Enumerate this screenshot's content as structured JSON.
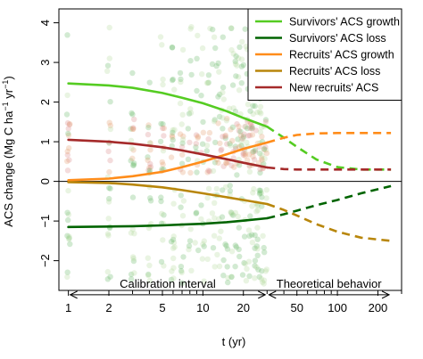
{
  "chart_data": {
    "type": "line",
    "xlabel": "t (yr)",
    "ylabel_main": "ACS change (Mg C ha",
    "ylabel_sup1": "−1",
    "ylabel_mid": " yr",
    "ylabel_sup2": "−1",
    "ylabel_end": ")",
    "x_scale": "log",
    "xlim": [
      0.85,
      300
    ],
    "ylim": [
      -2.75,
      4.35
    ],
    "x_ticks": [
      1,
      2,
      5,
      10,
      20,
      50,
      100,
      200
    ],
    "y_ticks": [
      -2,
      -1,
      0,
      1,
      2,
      3,
      4
    ],
    "zero_line": true,
    "calibration_max_t": 30,
    "annotations": [
      {
        "text": "Calibration interval",
        "x_from": 1,
        "x_to": 30,
        "y": -2.5
      },
      {
        "text": "Theoretical behavior",
        "x_from": 30,
        "x_to": 250,
        "y": -2.5
      }
    ],
    "legend_position": "top-right",
    "series": [
      {
        "name": "Survivors' ACS growth",
        "color": "#55cc22",
        "points": [
          [
            1,
            2.47
          ],
          [
            2,
            2.42
          ],
          [
            3,
            2.36
          ],
          [
            5,
            2.23
          ],
          [
            7,
            2.11
          ],
          [
            10,
            1.97
          ],
          [
            15,
            1.77
          ],
          [
            20,
            1.6
          ],
          [
            30,
            1.38
          ],
          [
            40,
            1.1
          ],
          [
            50,
            0.87
          ],
          [
            70,
            0.55
          ],
          [
            100,
            0.36
          ],
          [
            150,
            0.3
          ],
          [
            250,
            0.3
          ]
        ]
      },
      {
        "name": "Survivors' ACS loss",
        "color": "#006400",
        "points": [
          [
            1,
            -1.15
          ],
          [
            2,
            -1.14
          ],
          [
            3,
            -1.13
          ],
          [
            5,
            -1.11
          ],
          [
            7,
            -1.09
          ],
          [
            10,
            -1.07
          ],
          [
            15,
            -1.03
          ],
          [
            20,
            -0.99
          ],
          [
            30,
            -0.93
          ],
          [
            40,
            -0.83
          ],
          [
            50,
            -0.74
          ],
          [
            70,
            -0.6
          ],
          [
            100,
            -0.47
          ],
          [
            150,
            -0.3
          ],
          [
            250,
            -0.12
          ]
        ]
      },
      {
        "name": "Recruits' ACS growth",
        "color": "#ff8c1a",
        "points": [
          [
            1,
            0.03
          ],
          [
            2,
            0.07
          ],
          [
            3,
            0.13
          ],
          [
            5,
            0.24
          ],
          [
            7,
            0.36
          ],
          [
            10,
            0.5
          ],
          [
            15,
            0.68
          ],
          [
            20,
            0.82
          ],
          [
            30,
            0.98
          ],
          [
            40,
            1.1
          ],
          [
            50,
            1.17
          ],
          [
            70,
            1.21
          ],
          [
            100,
            1.22
          ],
          [
            250,
            1.22
          ]
        ]
      },
      {
        "name": "Recruits' ACS loss",
        "color": "#b8860b",
        "points": [
          [
            1,
            -0.02
          ],
          [
            2,
            -0.04
          ],
          [
            3,
            -0.08
          ],
          [
            5,
            -0.15
          ],
          [
            7,
            -0.22
          ],
          [
            10,
            -0.3
          ],
          [
            15,
            -0.4
          ],
          [
            20,
            -0.47
          ],
          [
            30,
            -0.57
          ],
          [
            40,
            -0.72
          ],
          [
            50,
            -0.86
          ],
          [
            70,
            -1.08
          ],
          [
            100,
            -1.27
          ],
          [
            150,
            -1.42
          ],
          [
            250,
            -1.5
          ]
        ]
      },
      {
        "name": "New recruits' ACS",
        "color": "#a52a2a",
        "points": [
          [
            1,
            1.05
          ],
          [
            2,
            1.0
          ],
          [
            3,
            0.95
          ],
          [
            5,
            0.86
          ],
          [
            7,
            0.78
          ],
          [
            10,
            0.68
          ],
          [
            15,
            0.56
          ],
          [
            20,
            0.47
          ],
          [
            30,
            0.35
          ],
          [
            40,
            0.31
          ],
          [
            50,
            0.3
          ],
          [
            250,
            0.3
          ]
        ]
      }
    ]
  }
}
